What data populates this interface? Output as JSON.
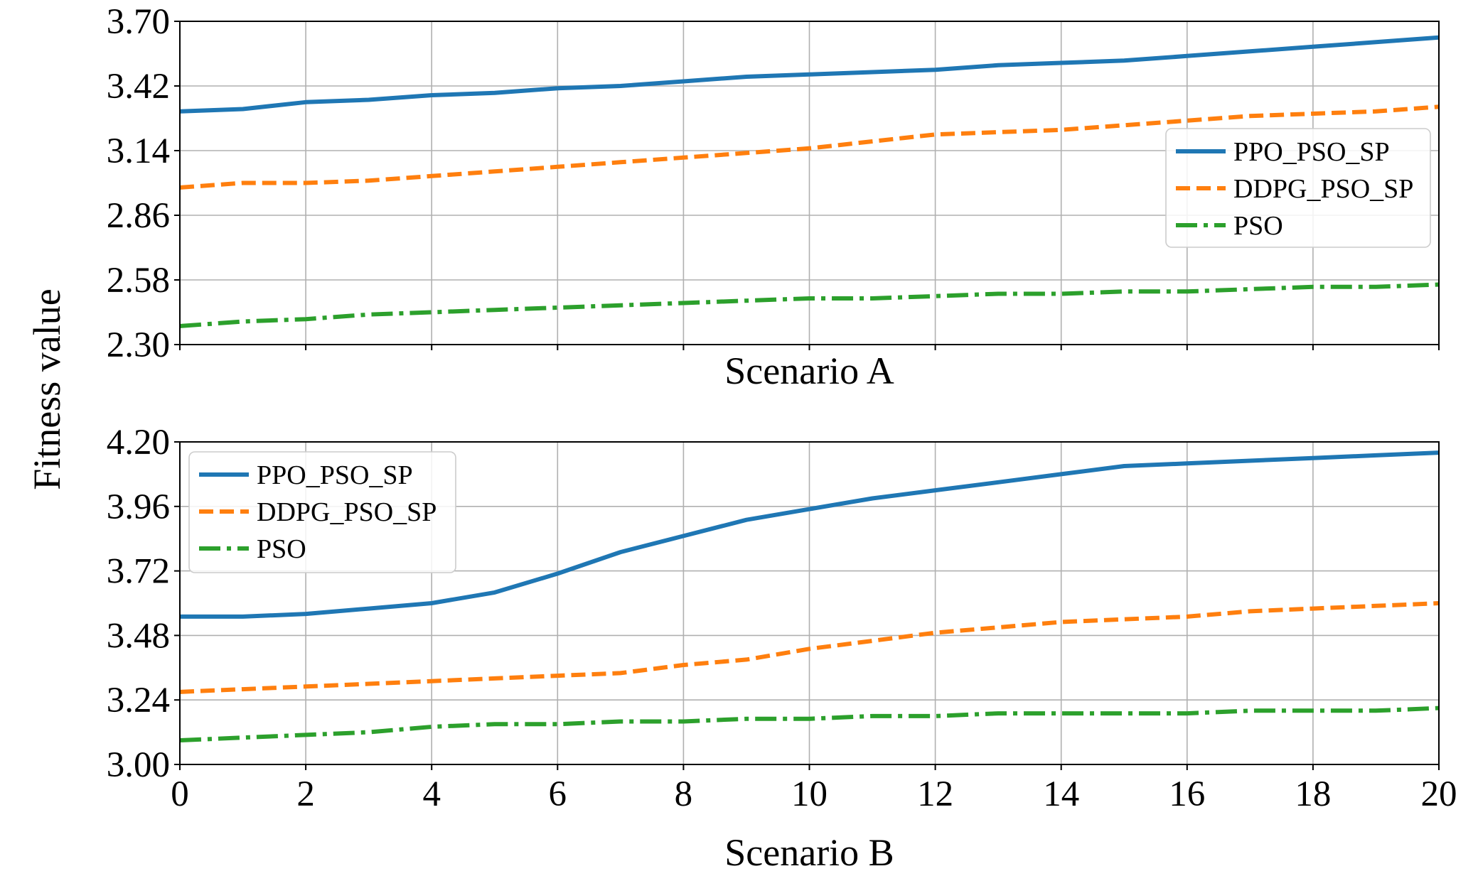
{
  "chart_data": [
    {
      "type": "line",
      "xlabel": "Scenario A",
      "ylabel": "Fitness value",
      "xlim": [
        0,
        20
      ],
      "ylim": [
        2.3,
        3.7
      ],
      "xticks": [
        0,
        2,
        4,
        6,
        8,
        10,
        12,
        14,
        16,
        18,
        20
      ],
      "xtick_labels_visible": false,
      "yticks": [
        "2.30",
        "2.58",
        "2.86",
        "3.14",
        "3.42",
        "3.70"
      ],
      "grid": true,
      "legend_position": "right",
      "x": [
        0,
        1,
        2,
        3,
        4,
        5,
        6,
        7,
        8,
        9,
        10,
        11,
        12,
        13,
        14,
        15,
        16,
        17,
        18,
        19,
        20
      ],
      "series": [
        {
          "name": "PPO_PSO_SP",
          "color": "#1f77b4",
          "dash": "solid",
          "values": [
            3.31,
            3.32,
            3.35,
            3.36,
            3.38,
            3.39,
            3.41,
            3.42,
            3.44,
            3.46,
            3.47,
            3.48,
            3.49,
            3.51,
            3.52,
            3.53,
            3.55,
            3.57,
            3.59,
            3.61,
            3.63
          ]
        },
        {
          "name": "DDPG_PSO_SP",
          "color": "#ff7f0e",
          "dash": "dashed",
          "values": [
            2.98,
            3.0,
            3.0,
            3.01,
            3.03,
            3.05,
            3.07,
            3.09,
            3.11,
            3.13,
            3.15,
            3.18,
            3.21,
            3.22,
            3.23,
            3.25,
            3.27,
            3.29,
            3.3,
            3.31,
            3.33
          ]
        },
        {
          "name": "PSO",
          "color": "#2ca02c",
          "dash": "dashdot",
          "values": [
            2.38,
            2.4,
            2.41,
            2.43,
            2.44,
            2.45,
            2.46,
            2.47,
            2.48,
            2.49,
            2.5,
            2.5,
            2.51,
            2.52,
            2.52,
            2.53,
            2.53,
            2.54,
            2.55,
            2.55,
            2.56
          ]
        }
      ]
    },
    {
      "type": "line",
      "xlabel": "Scenario B",
      "ylabel": "Fitness value",
      "xlim": [
        0,
        20
      ],
      "ylim": [
        3.0,
        4.2
      ],
      "xticks": [
        0,
        2,
        4,
        6,
        8,
        10,
        12,
        14,
        16,
        18,
        20
      ],
      "xtick_labels_visible": true,
      "yticks": [
        "3.00",
        "3.24",
        "3.48",
        "3.72",
        "3.96",
        "4.20"
      ],
      "grid": true,
      "legend_position": "top-left",
      "x": [
        0,
        1,
        2,
        3,
        4,
        5,
        6,
        7,
        8,
        9,
        10,
        11,
        12,
        13,
        14,
        15,
        16,
        17,
        18,
        19,
        20
      ],
      "series": [
        {
          "name": "PPO_PSO_SP",
          "color": "#1f77b4",
          "dash": "solid",
          "values": [
            3.55,
            3.55,
            3.56,
            3.58,
            3.6,
            3.64,
            3.71,
            3.79,
            3.85,
            3.91,
            3.95,
            3.99,
            4.02,
            4.05,
            4.08,
            4.11,
            4.12,
            4.13,
            4.14,
            4.15,
            4.16
          ]
        },
        {
          "name": "DDPG_PSO_SP",
          "color": "#ff7f0e",
          "dash": "dashed",
          "values": [
            3.27,
            3.28,
            3.29,
            3.3,
            3.31,
            3.32,
            3.33,
            3.34,
            3.37,
            3.39,
            3.43,
            3.46,
            3.49,
            3.51,
            3.53,
            3.54,
            3.55,
            3.57,
            3.58,
            3.59,
            3.6
          ]
        },
        {
          "name": "PSO",
          "color": "#2ca02c",
          "dash": "dashdot",
          "values": [
            3.09,
            3.1,
            3.11,
            3.12,
            3.14,
            3.15,
            3.15,
            3.16,
            3.16,
            3.17,
            3.17,
            3.18,
            3.18,
            3.19,
            3.19,
            3.19,
            3.19,
            3.2,
            3.2,
            3.2,
            3.21
          ]
        }
      ]
    }
  ]
}
